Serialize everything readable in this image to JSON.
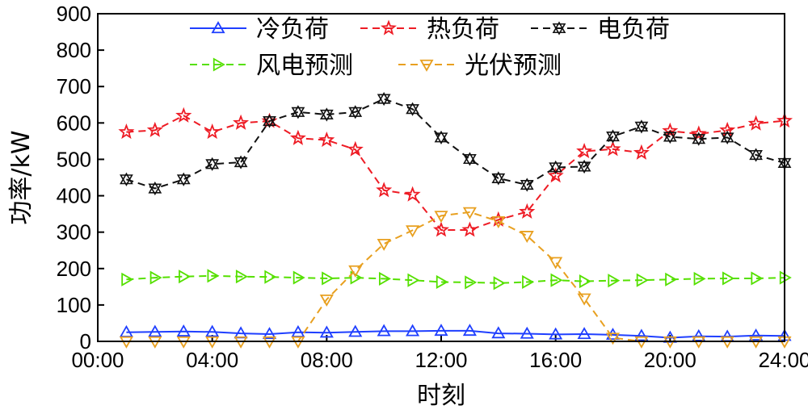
{
  "chart_data": {
    "type": "line",
    "xlabel": "时刻",
    "ylabel": "功率/kW",
    "x_tick_labels": [
      "00:00",
      "04:00",
      "08:00",
      "12:00",
      "16:00",
      "20:00",
      "24:00"
    ],
    "x_ticks": [
      0,
      4,
      8,
      12,
      16,
      20,
      24
    ],
    "y_ticks": [
      0,
      100,
      200,
      300,
      400,
      500,
      600,
      700,
      800,
      900
    ],
    "xlim": [
      0,
      24
    ],
    "ylim": [
      0,
      900
    ],
    "x": [
      1,
      2,
      3,
      4,
      5,
      6,
      7,
      8,
      9,
      10,
      11,
      12,
      13,
      14,
      15,
      16,
      17,
      18,
      19,
      20,
      21,
      22,
      23,
      24
    ],
    "legend_position": "top",
    "series": [
      {
        "name": "冷负荷",
        "color": "#1f3fff",
        "line_style": "solid",
        "marker": "triangle-up",
        "values": [
          25,
          26,
          27,
          26,
          22,
          20,
          25,
          24,
          26,
          28,
          28,
          29,
          29,
          22,
          21,
          19,
          20,
          18,
          15,
          10,
          14,
          13,
          16,
          15
        ]
      },
      {
        "name": "热负荷",
        "color": "#ee1c25",
        "line_style": "dashed",
        "marker": "star",
        "values": [
          575,
          580,
          620,
          575,
          600,
          605,
          558,
          553,
          527,
          415,
          403,
          306,
          306,
          334,
          356,
          455,
          522,
          528,
          518,
          578,
          570,
          580,
          598,
          606
        ]
      },
      {
        "name": "电负荷",
        "color": "#111111",
        "line_style": "dashed",
        "marker": "hexagram",
        "values": [
          445,
          420,
          445,
          487,
          492,
          605,
          630,
          623,
          630,
          666,
          638,
          560,
          501,
          448,
          430,
          478,
          480,
          563,
          590,
          562,
          556,
          560,
          512,
          490
        ]
      },
      {
        "name": "风电预测",
        "color": "#55e000",
        "line_style": "dashed",
        "marker": "triangle-right",
        "values": [
          170,
          175,
          178,
          180,
          178,
          177,
          175,
          173,
          175,
          172,
          168,
          163,
          162,
          160,
          163,
          168,
          165,
          167,
          168,
          170,
          172,
          173,
          173,
          175
        ]
      },
      {
        "name": "光伏预测",
        "color": "#e8a020",
        "line_style": "dashed",
        "marker": "triangle-down",
        "values": [
          0,
          0,
          0,
          0,
          0,
          0,
          0,
          115,
          195,
          268,
          305,
          345,
          355,
          330,
          290,
          218,
          118,
          10,
          0,
          0,
          0,
          0,
          0,
          0
        ]
      }
    ]
  }
}
